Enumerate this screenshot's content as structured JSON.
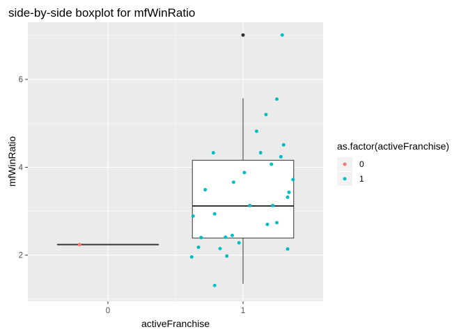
{
  "chart_data": {
    "type": "boxplot",
    "title": "side-by-side boxplot for mfWinRatio",
    "xlabel": "activeFranchise",
    "ylabel": "mfWinRatio",
    "categories": [
      "0",
      "1"
    ],
    "x_ticks": [
      "0",
      "1"
    ],
    "y_ticks": [
      2,
      4,
      6
    ],
    "ylim": [
      0.95,
      7.3
    ],
    "grid": true,
    "legend_position": "right",
    "legend": {
      "title": "as.factor(activeFranchise)",
      "entries": [
        {
          "label": "0",
          "color": "#f8766d"
        },
        {
          "label": "1",
          "color": "#00bfc4"
        }
      ]
    },
    "boxes": [
      {
        "category": "0",
        "min": 2.24,
        "q1": 2.24,
        "median": 2.24,
        "q3": 2.24,
        "max": 2.24,
        "outliers": []
      },
      {
        "category": "1",
        "min": 1.35,
        "q1": 2.39,
        "median": 3.12,
        "q3": 4.16,
        "max": 5.57,
        "outliers": [
          7.01
        ]
      }
    ],
    "points": [
      {
        "category": "0",
        "jitter": -0.21,
        "y": 2.24
      },
      {
        "category": "1",
        "jitter": -0.38,
        "y": 1.96
      },
      {
        "category": "1",
        "jitter": -0.37,
        "y": 2.89
      },
      {
        "category": "1",
        "jitter": -0.33,
        "y": 2.18
      },
      {
        "category": "1",
        "jitter": -0.31,
        "y": 2.4
      },
      {
        "category": "1",
        "jitter": -0.28,
        "y": 3.49
      },
      {
        "category": "1",
        "jitter": -0.22,
        "y": 4.33
      },
      {
        "category": "1",
        "jitter": -0.21,
        "y": 2.94
      },
      {
        "category": "1",
        "jitter": -0.21,
        "y": 1.31
      },
      {
        "category": "1",
        "jitter": -0.17,
        "y": 2.15
      },
      {
        "category": "1",
        "jitter": -0.13,
        "y": 2.41
      },
      {
        "category": "1",
        "jitter": -0.12,
        "y": 1.98
      },
      {
        "category": "1",
        "jitter": -0.08,
        "y": 2.45
      },
      {
        "category": "1",
        "jitter": -0.07,
        "y": 3.66
      },
      {
        "category": "1",
        "jitter": -0.03,
        "y": 2.28
      },
      {
        "category": "1",
        "jitter": 0.01,
        "y": 3.88
      },
      {
        "category": "1",
        "jitter": 0.05,
        "y": 3.13
      },
      {
        "category": "1",
        "jitter": 0.1,
        "y": 4.82
      },
      {
        "category": "1",
        "jitter": 0.13,
        "y": 4.33
      },
      {
        "category": "1",
        "jitter": 0.17,
        "y": 5.2
      },
      {
        "category": "1",
        "jitter": 0.18,
        "y": 2.7
      },
      {
        "category": "1",
        "jitter": 0.21,
        "y": 4.07
      },
      {
        "category": "1",
        "jitter": 0.22,
        "y": 3.13
      },
      {
        "category": "1",
        "jitter": 0.25,
        "y": 5.55
      },
      {
        "category": "1",
        "jitter": 0.25,
        "y": 2.74
      },
      {
        "category": "1",
        "jitter": 0.28,
        "y": 4.24
      },
      {
        "category": "1",
        "jitter": 0.29,
        "y": 7.01
      },
      {
        "category": "1",
        "jitter": 0.3,
        "y": 4.51
      },
      {
        "category": "1",
        "jitter": 0.33,
        "y": 3.32
      },
      {
        "category": "1",
        "jitter": 0.33,
        "y": 2.14
      },
      {
        "category": "1",
        "jitter": 0.34,
        "y": 3.43
      },
      {
        "category": "1",
        "jitter": 0.37,
        "y": 3.72
      }
    ],
    "colors": {
      "panel_background": "#ebebeb",
      "grid_major": "#ffffff",
      "box_outline": "#333333",
      "outlier": "#333333",
      "series_0": "#f8766d",
      "series_1": "#00bfc4"
    }
  }
}
